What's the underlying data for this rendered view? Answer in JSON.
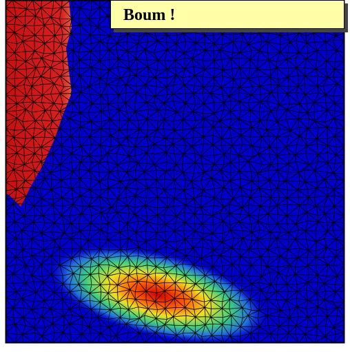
{
  "label": "Boum !"
}
